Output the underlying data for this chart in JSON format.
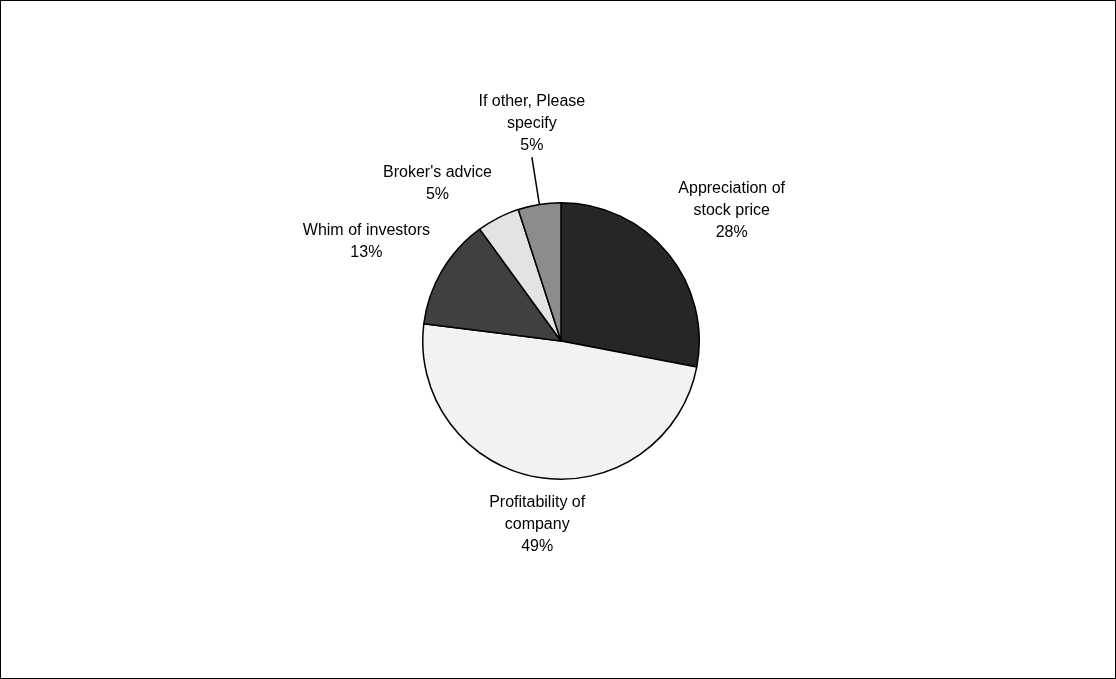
{
  "chart_data": {
    "type": "pie",
    "categories": [
      "Appreciation of stock price",
      "Profitability of company",
      "Whim of investors",
      "Broker's advice",
      "If other, Please specify"
    ],
    "values": [
      28,
      49,
      13,
      5,
      5
    ],
    "value_labels": [
      "28%",
      "49%",
      "13%",
      "5%",
      "5%"
    ],
    "colors": [
      "#262626",
      "#f2f2f2",
      "#404040",
      "#e3e3e3",
      "#8c8c8c"
    ]
  }
}
